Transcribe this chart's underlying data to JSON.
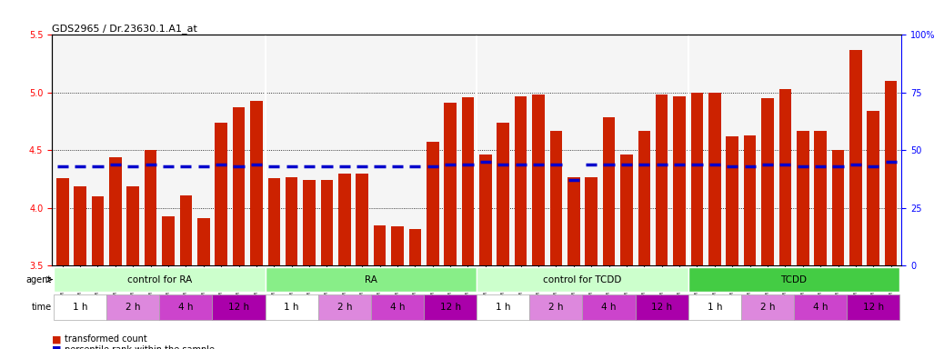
{
  "title": "GDS2965 / Dr.23630.1.A1_at",
  "samples": [
    "GSM228874",
    "GSM228875",
    "GSM228876",
    "GSM228880",
    "GSM228881",
    "GSM228882",
    "GSM228886",
    "GSM228887",
    "GSM228888",
    "GSM228892",
    "GSM228893",
    "GSM228894",
    "GSM228871",
    "GSM228872",
    "GSM228873",
    "GSM228877",
    "GSM228878",
    "GSM228879",
    "GSM228883",
    "GSM228884",
    "GSM228885",
    "GSM228889",
    "GSM228890",
    "GSM228891",
    "GSM228898",
    "GSM228899",
    "GSM228900",
    "GSM228905",
    "GSM228906",
    "GSM228907",
    "GSM228911",
    "GSM228912",
    "GSM228913",
    "GSM228917",
    "GSM228918",
    "GSM228919",
    "GSM228895",
    "GSM228896",
    "GSM228897",
    "GSM228901",
    "GSM228903",
    "GSM228904",
    "GSM228908",
    "GSM228909",
    "GSM228910",
    "GSM228914",
    "GSM228915",
    "GSM228916"
  ],
  "red_values": [
    4.26,
    4.19,
    4.1,
    4.44,
    4.19,
    4.5,
    3.93,
    4.11,
    3.91,
    4.74,
    4.87,
    4.93,
    4.26,
    4.27,
    4.24,
    4.24,
    4.3,
    4.3,
    3.85,
    3.84,
    3.82,
    4.57,
    4.91,
    4.96,
    4.46,
    4.74,
    4.97,
    4.98,
    4.67,
    4.27,
    4.27,
    4.79,
    4.46,
    4.67,
    4.98,
    4.97,
    5.0,
    5.0,
    4.62,
    4.63,
    4.95,
    5.03,
    4.67,
    4.67,
    4.5,
    5.37,
    4.84,
    5.1
  ],
  "blue_values": [
    43,
    43,
    43,
    44,
    43,
    44,
    43,
    43,
    43,
    44,
    43,
    44,
    43,
    43,
    43,
    43,
    43,
    43,
    43,
    43,
    43,
    43,
    44,
    44,
    45,
    44,
    44,
    44,
    44,
    37,
    44,
    44,
    44,
    44,
    44,
    44,
    44,
    44,
    43,
    43,
    44,
    44,
    43,
    43,
    43,
    44,
    43,
    45
  ],
  "ylim_left": [
    3.5,
    5.5
  ],
  "ylim_right": [
    0,
    100
  ],
  "yticks_left": [
    3.5,
    4.0,
    4.5,
    5.0,
    5.5
  ],
  "yticks_right": [
    0,
    25,
    50,
    75,
    100
  ],
  "dotted_lines": [
    4.0,
    4.5,
    5.0
  ],
  "bar_color": "#cc2200",
  "blue_color": "#0000cc",
  "agent_groups": [
    {
      "label": "control for RA",
      "start": 0,
      "end": 12,
      "color": "#ccffcc"
    },
    {
      "label": "RA",
      "start": 12,
      "end": 24,
      "color": "#88ee88"
    },
    {
      "label": "control for TCDD",
      "start": 24,
      "end": 36,
      "color": "#ccffcc"
    },
    {
      "label": "TCDD",
      "start": 36,
      "end": 48,
      "color": "#44cc44"
    }
  ],
  "time_groups": [
    {
      "label": "1 h",
      "start": 0,
      "end": 3,
      "color": "#ffffff"
    },
    {
      "label": "2 h",
      "start": 3,
      "end": 6,
      "color": "#dd88dd"
    },
    {
      "label": "4 h",
      "start": 6,
      "end": 9,
      "color": "#cc44cc"
    },
    {
      "label": "12 h",
      "start": 9,
      "end": 12,
      "color": "#aa00aa"
    },
    {
      "label": "1 h",
      "start": 12,
      "end": 15,
      "color": "#ffffff"
    },
    {
      "label": "2 h",
      "start": 15,
      "end": 18,
      "color": "#dd88dd"
    },
    {
      "label": "4 h",
      "start": 18,
      "end": 21,
      "color": "#cc44cc"
    },
    {
      "label": "12 h",
      "start": 21,
      "end": 24,
      "color": "#aa00aa"
    },
    {
      "label": "1 h",
      "start": 24,
      "end": 27,
      "color": "#ffffff"
    },
    {
      "label": "2 h",
      "start": 27,
      "end": 30,
      "color": "#dd88dd"
    },
    {
      "label": "4 h",
      "start": 30,
      "end": 33,
      "color": "#cc44cc"
    },
    {
      "label": "12 h",
      "start": 33,
      "end": 36,
      "color": "#aa00aa"
    },
    {
      "label": "1 h",
      "start": 36,
      "end": 39,
      "color": "#ffffff"
    },
    {
      "label": "2 h",
      "start": 39,
      "end": 42,
      "color": "#dd88dd"
    },
    {
      "label": "4 h",
      "start": 42,
      "end": 45,
      "color": "#cc44cc"
    },
    {
      "label": "12 h",
      "start": 45,
      "end": 48,
      "color": "#aa00aa"
    }
  ],
  "n_samples": 48,
  "bar_width": 0.7,
  "background_color": "#ffffff",
  "plot_bg_color": "#f5f5f5"
}
